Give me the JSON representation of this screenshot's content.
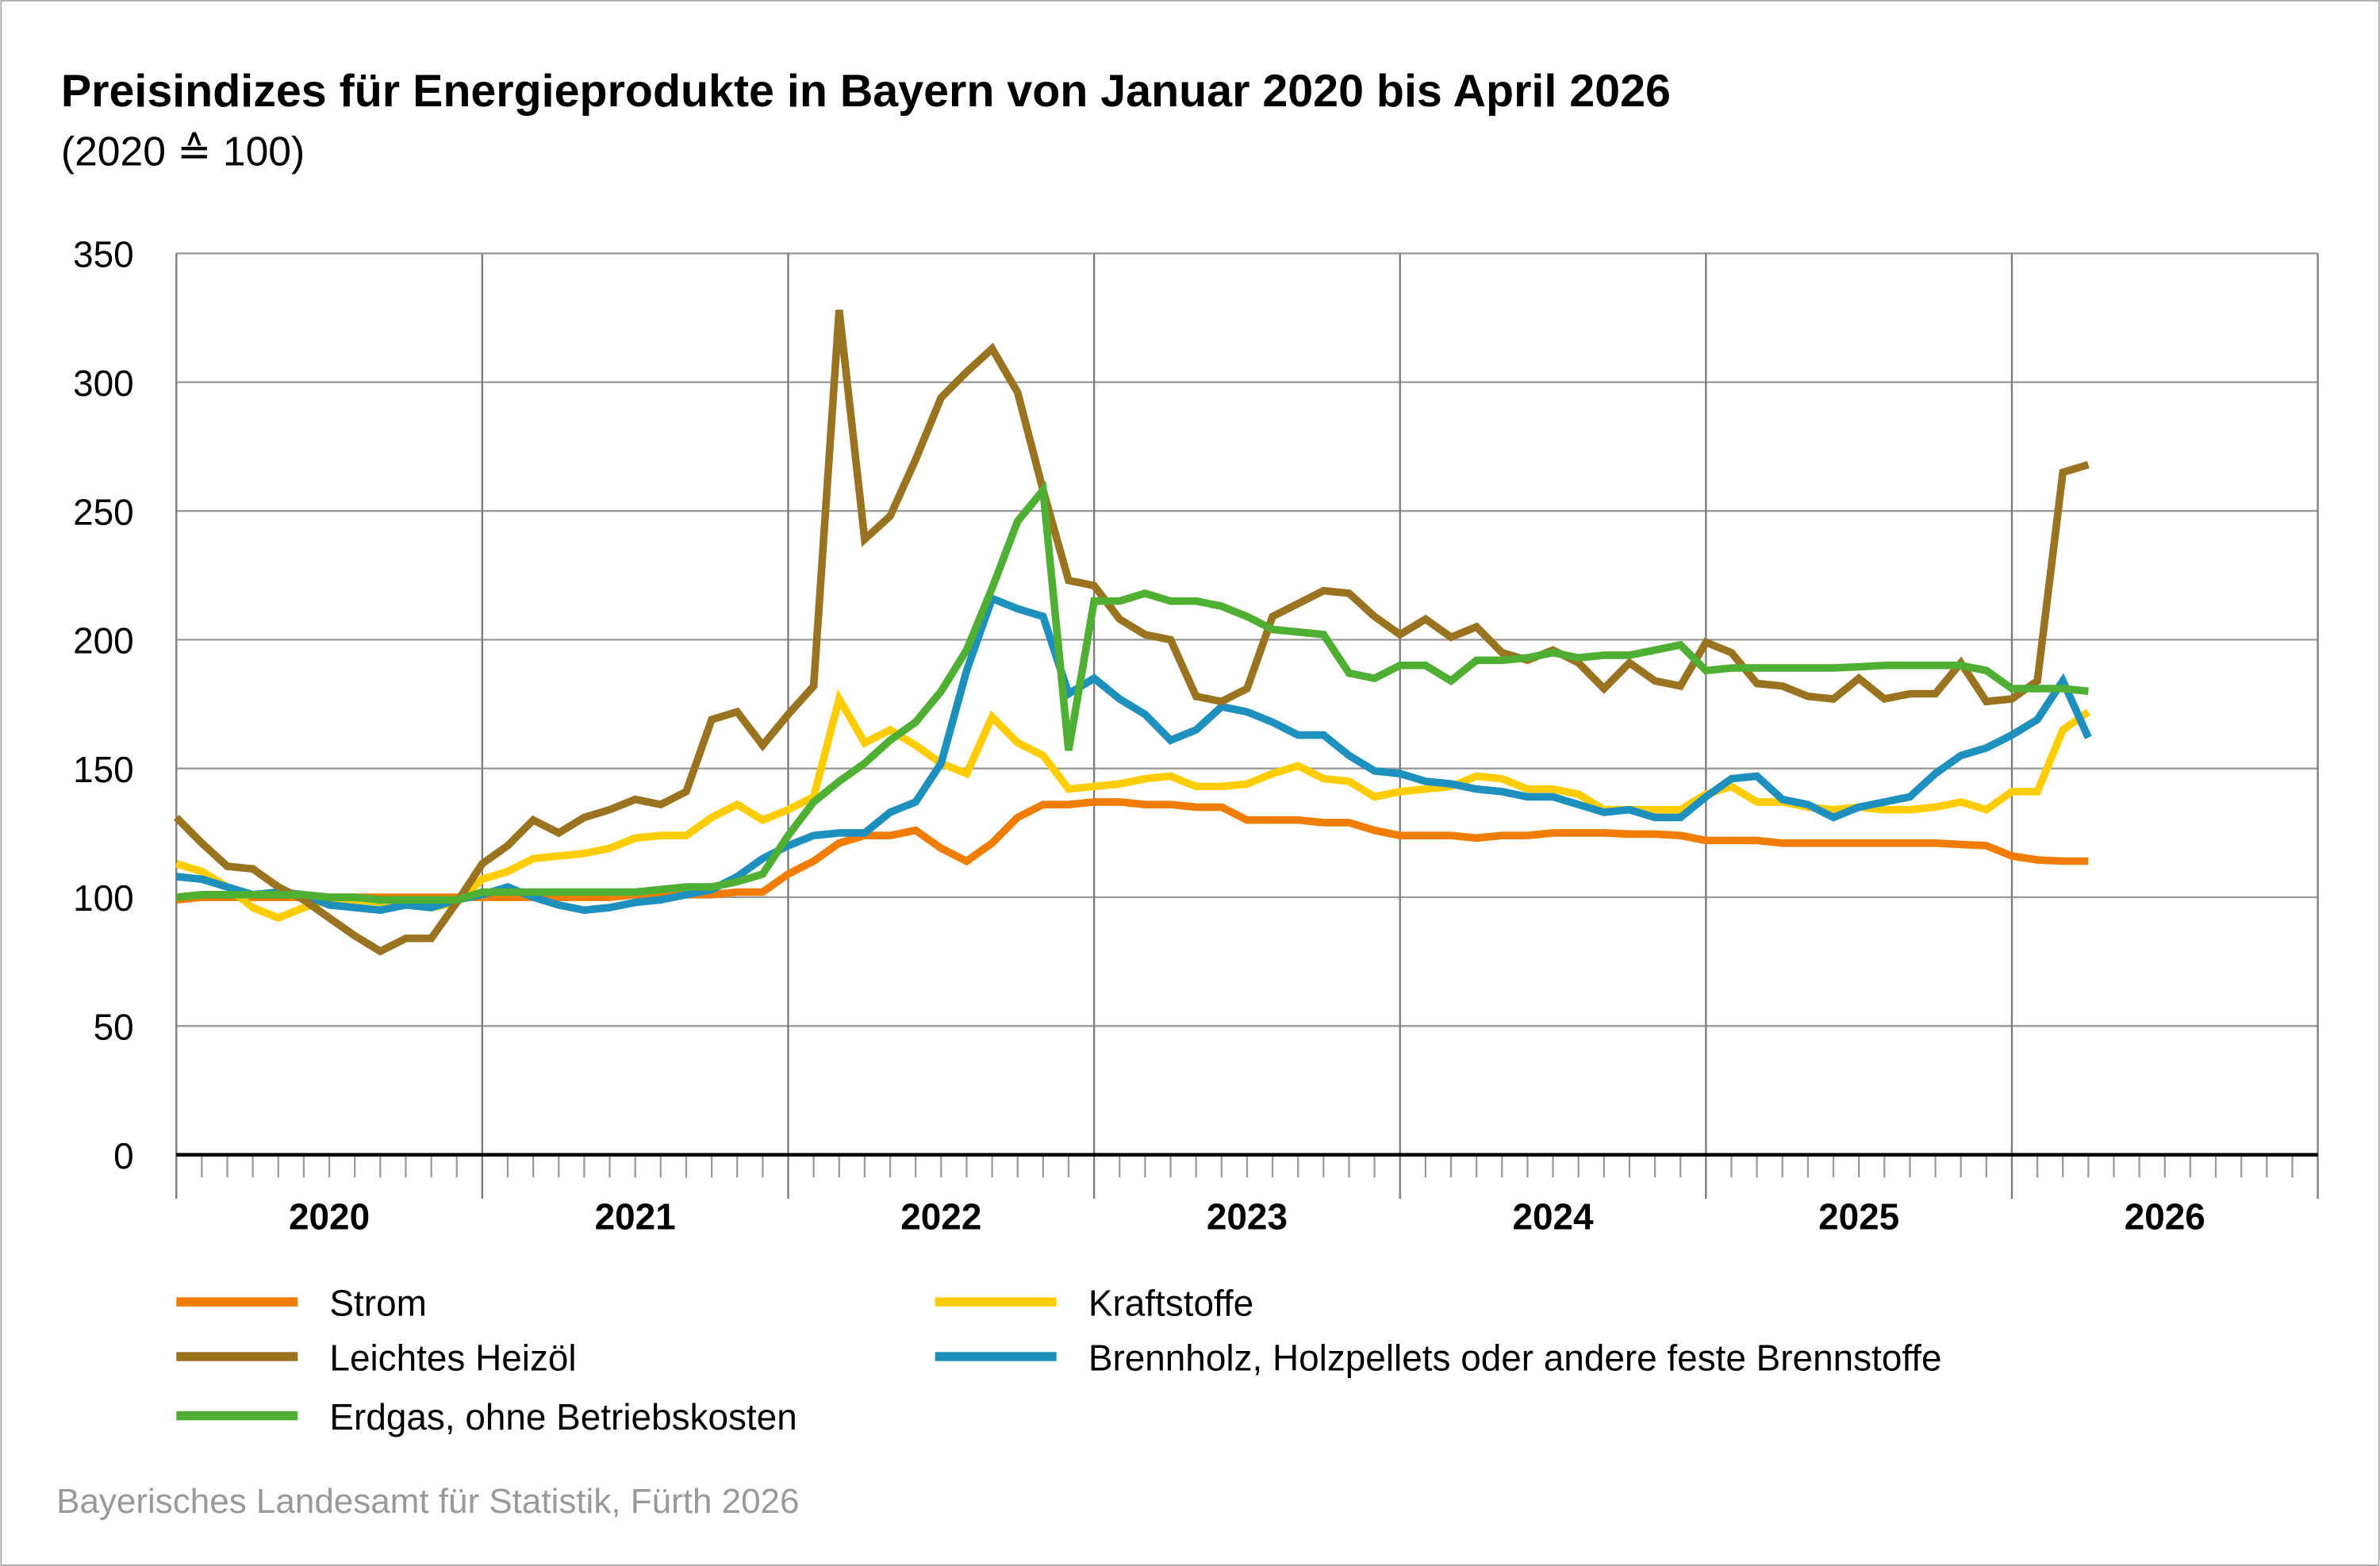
{
  "title": "Preisindizes für Energieprodukte in Bayern von Januar 2020 bis April 2026",
  "subtitle": "(2020 ≙ 100)",
  "source": "Bayerisches Landesamt für Statistik, Fürth 2026",
  "chart_data": {
    "type": "line",
    "title": "Preisindizes für Energieprodukte in Bayern von Januar 2020 bis April 2026",
    "subtitle": "(2020 ≙ 100)",
    "x_start": "2020-01",
    "x_frequency": "monthly",
    "x_tick_labels": [
      "2020",
      "2021",
      "2022",
      "2023",
      "2024",
      "2025",
      "2026"
    ],
    "y_ticks": [
      0,
      50,
      100,
      150,
      200,
      250,
      300,
      350
    ],
    "ylim": [
      0,
      350
    ],
    "grid": true,
    "legend_position": "bottom",
    "series": [
      {
        "name": "Strom",
        "color": "#F07D00",
        "values": [
          99,
          100,
          100,
          100,
          100,
          100,
          100,
          100,
          100,
          100,
          100,
          100,
          100,
          100,
          100,
          100,
          100,
          100,
          101,
          101,
          101,
          101,
          102,
          102,
          109,
          114,
          121,
          124,
          124,
          126,
          119,
          114,
          121,
          131,
          136,
          136,
          137,
          137,
          136,
          136,
          135,
          135,
          130,
          130,
          130,
          129,
          129,
          126,
          124,
          124,
          124,
          123,
          124,
          124,
          125,
          125,
          125,
          124.5,
          124.5,
          124,
          122,
          122,
          122,
          121,
          121,
          121,
          121,
          121,
          121,
          121,
          120.5,
          120,
          116,
          114.5,
          114,
          114
        ]
      },
      {
        "name": "Leichtes Heizöl",
        "color": "#9A7320",
        "values": [
          131,
          121,
          112,
          111,
          104,
          99,
          92,
          85,
          79,
          84,
          84,
          98,
          113,
          120,
          130,
          125,
          131,
          134,
          138,
          136,
          141,
          169,
          172,
          159,
          171,
          182,
          328,
          239,
          248,
          270,
          294,
          304,
          313,
          296,
          258,
          223,
          221,
          208,
          202,
          200,
          178,
          176,
          181,
          209,
          214,
          219,
          218,
          209,
          202,
          208,
          201,
          205,
          195,
          192,
          196,
          191,
          181,
          191,
          184,
          182,
          199,
          195,
          183,
          182,
          178,
          177,
          185,
          177,
          179,
          179,
          191,
          176,
          177,
          184,
          265,
          268
        ]
      },
      {
        "name": "Erdgas, ohne Betriebskosten",
        "color": "#4FAF32",
        "values": [
          100,
          101,
          101,
          101,
          101,
          101,
          100,
          100,
          99,
          99,
          99,
          99,
          102,
          102,
          102,
          102,
          102,
          102,
          102,
          103,
          104,
          104,
          106,
          109,
          124,
          137,
          145,
          152,
          161,
          168,
          180,
          196,
          220,
          246,
          258,
          157,
          215,
          215,
          218,
          215,
          215,
          213,
          209,
          204,
          203,
          202,
          187,
          185,
          190,
          190,
          184,
          192,
          192,
          193,
          195,
          193,
          194,
          194,
          196,
          198,
          188,
          189,
          189,
          189,
          189,
          189,
          189.5,
          190,
          190,
          190,
          190,
          188,
          181,
          181,
          181,
          180
        ]
      },
      {
        "name": "Kraftstoffe",
        "color": "#FFCC00",
        "values": [
          113,
          110,
          104,
          96,
          92,
          96,
          99,
          99,
          98,
          97,
          96,
          98,
          107,
          110,
          115,
          116,
          117,
          119,
          123,
          124,
          124,
          131,
          136,
          130,
          134,
          139,
          177,
          160,
          165,
          159,
          152,
          148,
          170,
          160,
          155,
          142,
          143,
          144,
          146,
          147,
          143,
          143,
          144,
          148,
          151,
          146,
          145,
          139,
          141,
          142,
          143,
          147,
          146,
          142,
          142,
          140,
          134,
          134,
          134,
          134,
          140,
          143,
          137,
          137,
          135,
          134,
          135,
          134,
          134,
          135,
          137,
          134,
          141,
          141,
          165,
          172
        ]
      },
      {
        "name": "Brennholz, Holzpellets oder andere feste Brennstoffe",
        "color": "#1E90BE",
        "values": [
          108,
          107,
          104,
          101,
          102,
          101,
          97,
          96,
          95,
          97,
          96,
          99,
          101,
          104,
          100,
          97,
          95,
          96,
          98,
          99,
          101,
          103,
          108,
          115,
          120,
          124,
          125,
          125,
          133,
          137,
          152,
          188,
          216,
          212,
          209,
          179,
          185,
          177,
          171,
          161,
          165,
          174,
          172,
          168,
          163,
          163,
          155,
          149,
          148,
          145,
          144,
          142,
          141,
          139,
          139,
          136,
          133,
          134,
          131,
          131,
          139,
          146,
          147,
          138,
          136,
          131,
          135,
          137,
          139,
          148,
          155,
          158,
          163,
          169,
          184,
          162
        ]
      }
    ]
  }
}
